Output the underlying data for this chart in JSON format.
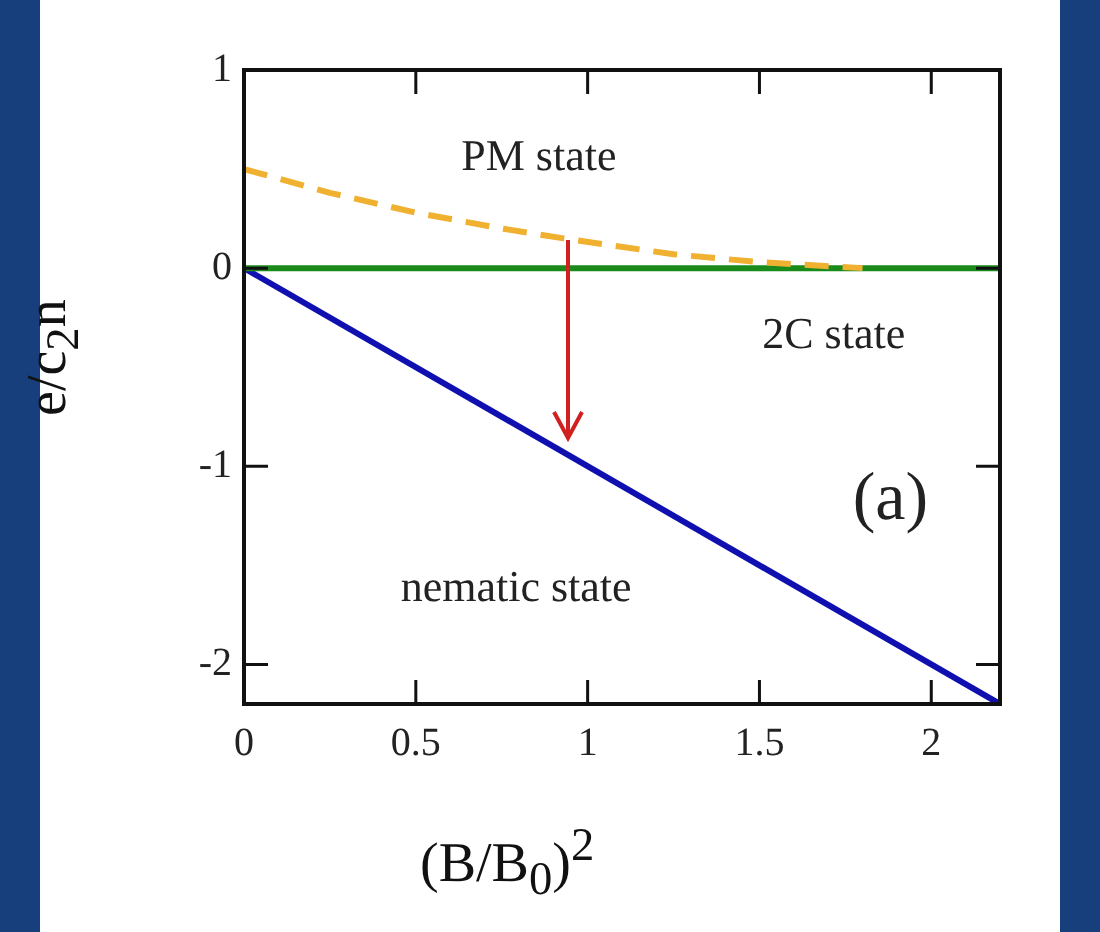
{
  "chart_data": {
    "type": "line",
    "xlabel": "(B/B$_{0}$)$^{2}$",
    "ylabel": "e/c$_{2}$n",
    "xlim": [
      0,
      2.2
    ],
    "ylim": [
      -2.2,
      1
    ],
    "xticks": [
      0,
      0.5,
      1,
      1.5,
      2
    ],
    "yticks": [
      -2,
      -1,
      0,
      1
    ],
    "series": [
      {
        "color": "#f0b030",
        "line_style": "dashed",
        "x": [
          0,
          0.25,
          0.5,
          0.75,
          0.93,
          1.25,
          1.5,
          1.8
        ],
        "values": [
          0.5,
          0.38,
          0.28,
          0.2,
          0.15,
          0.07,
          0.03,
          0
        ]
      },
      {
        "color": "#1a8a1a",
        "line_style": "solid",
        "x": [
          0,
          2.2
        ],
        "values": [
          0,
          0
        ]
      },
      {
        "color": "#1010b0",
        "line_style": "solid",
        "x": [
          0,
          2.2
        ],
        "values": [
          0,
          -2.2
        ]
      }
    ],
    "annotations": [
      "PM state",
      "2C state",
      "nematic state",
      "(a)"
    ],
    "grid": false,
    "legend": false,
    "marker": "none"
  }
}
